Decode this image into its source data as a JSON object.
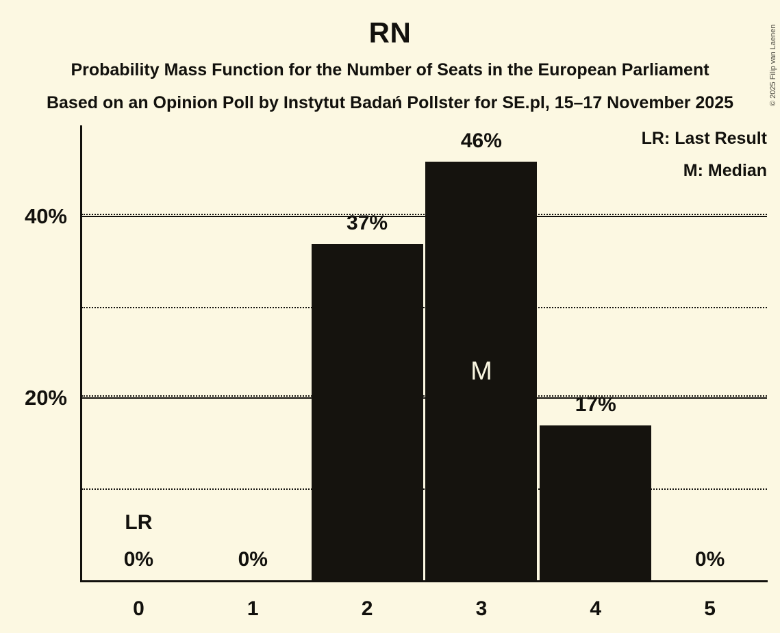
{
  "title": "RN",
  "subtitle_line1": "Probability Mass Function for the Number of Seats in the European Parliament",
  "subtitle_line2": "Based on an Opinion Poll by Instytut Badań Pollster for SE.pl, 15–17 November 2025",
  "legend": {
    "last_result": "LR: Last Result",
    "median": "M: Median"
  },
  "copyright": "© 2025 Filip van Laenen",
  "colors": {
    "background": "#FCF8E2",
    "bar": "#15130E",
    "text": "#12110D",
    "median_label": "#FAF6E1",
    "copyright_text": "#4E4C43"
  },
  "chart_data": {
    "type": "bar",
    "title": "RN",
    "categories": [
      "0",
      "1",
      "2",
      "3",
      "4",
      "5"
    ],
    "values": [
      0,
      0,
      37,
      46,
      17,
      0
    ],
    "bar_labels": [
      "0%",
      "0%",
      "37%",
      "46%",
      "17%",
      "0%"
    ],
    "annotations": [
      {
        "category": "0",
        "text": "LR",
        "placement": "above-value-label"
      },
      {
        "category": "3",
        "text": "M",
        "placement": "inside-bar"
      }
    ],
    "ylim": [
      0,
      50
    ],
    "yticks": [
      {
        "pct": 10,
        "style": "dotted",
        "label": ""
      },
      {
        "pct": 20,
        "style": "solid",
        "label": "20%"
      },
      {
        "pct": 30,
        "style": "dotted",
        "label": ""
      },
      {
        "pct": 40,
        "style": "solid",
        "label": "40%"
      }
    ],
    "grid": "horizontal",
    "legend_position": "top-right"
  }
}
